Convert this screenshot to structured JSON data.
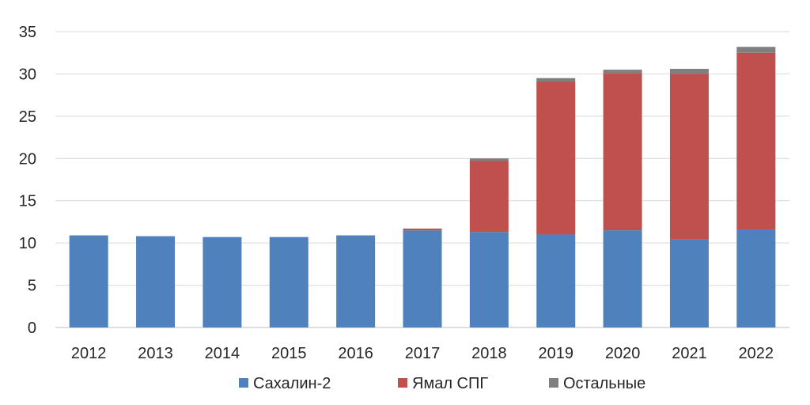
{
  "chart_data": {
    "type": "bar",
    "stacked": true,
    "categories": [
      "2012",
      "2013",
      "2014",
      "2015",
      "2016",
      "2017",
      "2018",
      "2019",
      "2020",
      "2021",
      "2022"
    ],
    "series": [
      {
        "name": "Сахалин-2",
        "color": "#4f81bd",
        "values": [
          10.9,
          10.8,
          10.7,
          10.7,
          10.9,
          11.5,
          11.3,
          11.0,
          11.5,
          10.4,
          11.6
        ]
      },
      {
        "name": "Ямал СПГ",
        "color": "#c0504d",
        "values": [
          0,
          0,
          0,
          0,
          0,
          0.2,
          8.4,
          18.1,
          18.6,
          19.6,
          20.9
        ]
      },
      {
        "name": "Остальные",
        "color": "#7f7f7f",
        "values": [
          0,
          0,
          0,
          0,
          0,
          0,
          0.3,
          0.4,
          0.4,
          0.6,
          0.7
        ]
      }
    ],
    "ylim": [
      0,
      35
    ],
    "yticks": [
      "0",
      "5",
      "10",
      "15",
      "20",
      "25",
      "30",
      "35"
    ],
    "grid": true,
    "legend_position": "bottom",
    "title": "",
    "xlabel": "",
    "ylabel": ""
  }
}
